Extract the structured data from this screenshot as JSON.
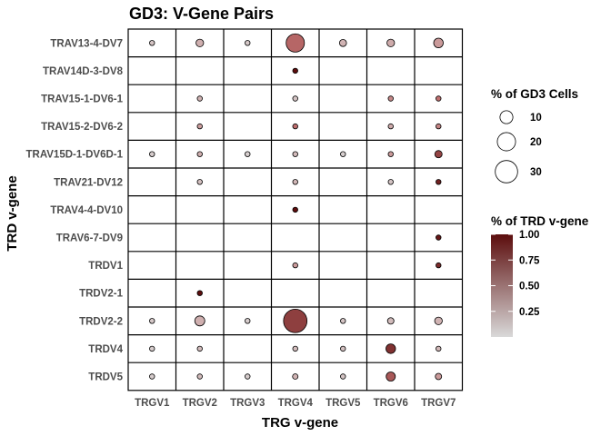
{
  "chart_data": {
    "type": "bubble-grid",
    "title": "GD3: V-Gene Pairs",
    "xlabel": "TRG v-gene",
    "ylabel": "TRD v-gene",
    "x_categories": [
      "TRGV1",
      "TRGV2",
      "TRGV3",
      "TRGV4",
      "TRGV5",
      "TRGV6",
      "TRGV7"
    ],
    "y_categories": [
      "TRAV13-4-DV7",
      "TRAV14D-3-DV8",
      "TRAV15-1-DV6-1",
      "TRAV15-2-DV6-2",
      "TRAV15D-1-DV6D-1",
      "TRAV21-DV12",
      "TRAV4-4-DV10",
      "TRAV6-7-DV9",
      "TRDV1",
      "TRDV2-1",
      "TRDV2-2",
      "TRDV4",
      "TRDV5"
    ],
    "size_legend": {
      "title": "% of GD3 Cells",
      "values": [
        10,
        20,
        30
      ],
      "labels": [
        "10",
        "20",
        "30"
      ]
    },
    "color_legend": {
      "title": "% of TRD v-gene",
      "ticks": [
        1.0,
        0.75,
        0.5,
        0.25
      ],
      "labels": [
        "1.00",
        "0.75",
        "0.50",
        "0.25"
      ],
      "low_color": "#d9d9d9",
      "high_color": "#5c0d0d"
    },
    "points": [
      {
        "x": "TRGV1",
        "y": "TRAV13-4-DV7",
        "pct_cells": 1.0,
        "frac_trd": 0.1
      },
      {
        "x": "TRGV2",
        "y": "TRAV13-4-DV7",
        "pct_cells": 3.5,
        "frac_trd": 0.2
      },
      {
        "x": "TRGV3",
        "y": "TRAV13-4-DV7",
        "pct_cells": 0.8,
        "frac_trd": 0.08
      },
      {
        "x": "TRGV4",
        "y": "TRAV13-4-DV7",
        "pct_cells": 20,
        "frac_trd": 0.55
      },
      {
        "x": "TRGV5",
        "y": "TRAV13-4-DV7",
        "pct_cells": 3.0,
        "frac_trd": 0.18
      },
      {
        "x": "TRGV6",
        "y": "TRAV13-4-DV7",
        "pct_cells": 3.5,
        "frac_trd": 0.22
      },
      {
        "x": "TRGV7",
        "y": "TRAV13-4-DV7",
        "pct_cells": 5.5,
        "frac_trd": 0.3
      },
      {
        "x": "TRGV4",
        "y": "TRAV14D-3-DV8",
        "pct_cells": 0.7,
        "frac_trd": 1.0
      },
      {
        "x": "TRGV2",
        "y": "TRAV15-1-DV6-1",
        "pct_cells": 0.9,
        "frac_trd": 0.18
      },
      {
        "x": "TRGV4",
        "y": "TRAV15-1-DV6-1",
        "pct_cells": 0.7,
        "frac_trd": 0.1
      },
      {
        "x": "TRGV6",
        "y": "TRAV15-1-DV6-1",
        "pct_cells": 1.1,
        "frac_trd": 0.38
      },
      {
        "x": "TRGV7",
        "y": "TRAV15-1-DV6-1",
        "pct_cells": 1.5,
        "frac_trd": 0.5
      },
      {
        "x": "TRGV2",
        "y": "TRAV15-2-DV6-2",
        "pct_cells": 0.9,
        "frac_trd": 0.28
      },
      {
        "x": "TRGV4",
        "y": "TRAV15-2-DV6-2",
        "pct_cells": 1.3,
        "frac_trd": 0.52
      },
      {
        "x": "TRGV6",
        "y": "TRAV15-2-DV6-2",
        "pct_cells": 0.8,
        "frac_trd": 0.22
      },
      {
        "x": "TRGV7",
        "y": "TRAV15-2-DV6-2",
        "pct_cells": 1.2,
        "frac_trd": 0.4
      },
      {
        "x": "TRGV1",
        "y": "TRAV15D-1-DV6D-1",
        "pct_cells": 0.6,
        "frac_trd": 0.06
      },
      {
        "x": "TRGV2",
        "y": "TRAV15D-1-DV6D-1",
        "pct_cells": 1.1,
        "frac_trd": 0.2
      },
      {
        "x": "TRGV3",
        "y": "TRAV15D-1-DV6D-1",
        "pct_cells": 0.6,
        "frac_trd": 0.05
      },
      {
        "x": "TRGV4",
        "y": "TRAV15D-1-DV6D-1",
        "pct_cells": 1.0,
        "frac_trd": 0.15
      },
      {
        "x": "TRGV5",
        "y": "TRAV15D-1-DV6D-1",
        "pct_cells": 0.6,
        "frac_trd": 0.05
      },
      {
        "x": "TRGV6",
        "y": "TRAV15D-1-DV6D-1",
        "pct_cells": 1.3,
        "frac_trd": 0.3
      },
      {
        "x": "TRGV7",
        "y": "TRAV15D-1-DV6D-1",
        "pct_cells": 3.2,
        "frac_trd": 0.72
      },
      {
        "x": "TRGV2",
        "y": "TRAV21-DV12",
        "pct_cells": 0.7,
        "frac_trd": 0.12
      },
      {
        "x": "TRGV4",
        "y": "TRAV21-DV12",
        "pct_cells": 0.8,
        "frac_trd": 0.16
      },
      {
        "x": "TRGV6",
        "y": "TRAV21-DV12",
        "pct_cells": 0.6,
        "frac_trd": 0.1
      },
      {
        "x": "TRGV7",
        "y": "TRAV21-DV12",
        "pct_cells": 1.2,
        "frac_trd": 0.9
      },
      {
        "x": "TRGV4",
        "y": "TRAV4-4-DV10",
        "pct_cells": 0.7,
        "frac_trd": 1.0
      },
      {
        "x": "TRGV7",
        "y": "TRAV6-7-DV9",
        "pct_cells": 0.8,
        "frac_trd": 0.95
      },
      {
        "x": "TRGV4",
        "y": "TRDV1",
        "pct_cells": 0.6,
        "frac_trd": 0.3
      },
      {
        "x": "TRGV7",
        "y": "TRDV1",
        "pct_cells": 0.9,
        "frac_trd": 0.85
      },
      {
        "x": "TRGV2",
        "y": "TRDV2-1",
        "pct_cells": 0.8,
        "frac_trd": 1.0
      },
      {
        "x": "TRGV1",
        "y": "TRDV2-2",
        "pct_cells": 1.0,
        "frac_trd": 0.08
      },
      {
        "x": "TRGV2",
        "y": "TRDV2-2",
        "pct_cells": 6.0,
        "frac_trd": 0.2
      },
      {
        "x": "TRGV3",
        "y": "TRDV2-2",
        "pct_cells": 1.0,
        "frac_trd": 0.06
      },
      {
        "x": "TRGV4",
        "y": "TRDV2-2",
        "pct_cells": 33,
        "frac_trd": 0.75
      },
      {
        "x": "TRGV5",
        "y": "TRDV2-2",
        "pct_cells": 1.5,
        "frac_trd": 0.1
      },
      {
        "x": "TRGV6",
        "y": "TRDV2-2",
        "pct_cells": 2.5,
        "frac_trd": 0.14
      },
      {
        "x": "TRGV7",
        "y": "TRDV2-2",
        "pct_cells": 3.5,
        "frac_trd": 0.18
      },
      {
        "x": "TRGV1",
        "y": "TRDV4",
        "pct_cells": 0.6,
        "frac_trd": 0.06
      },
      {
        "x": "TRGV2",
        "y": "TRDV4",
        "pct_cells": 1.3,
        "frac_trd": 0.14
      },
      {
        "x": "TRGV4",
        "y": "TRDV4",
        "pct_cells": 1.1,
        "frac_trd": 0.14
      },
      {
        "x": "TRGV5",
        "y": "TRDV4",
        "pct_cells": 1.3,
        "frac_trd": 0.12
      },
      {
        "x": "TRGV6",
        "y": "TRDV4",
        "pct_cells": 5.5,
        "frac_trd": 0.82
      },
      {
        "x": "TRGV7",
        "y": "TRDV4",
        "pct_cells": 1.4,
        "frac_trd": 0.16
      },
      {
        "x": "TRGV1",
        "y": "TRDV5",
        "pct_cells": 0.7,
        "frac_trd": 0.06
      },
      {
        "x": "TRGV2",
        "y": "TRDV5",
        "pct_cells": 1.4,
        "frac_trd": 0.14
      },
      {
        "x": "TRGV3",
        "y": "TRDV5",
        "pct_cells": 0.7,
        "frac_trd": 0.06
      },
      {
        "x": "TRGV4",
        "y": "TRDV5",
        "pct_cells": 1.8,
        "frac_trd": 0.18
      },
      {
        "x": "TRGV5",
        "y": "TRDV5",
        "pct_cells": 1.2,
        "frac_trd": 0.1
      },
      {
        "x": "TRGV6",
        "y": "TRDV5",
        "pct_cells": 5.0,
        "frac_trd": 0.62
      },
      {
        "x": "TRGV7",
        "y": "TRDV5",
        "pct_cells": 2.4,
        "frac_trd": 0.3
      }
    ]
  }
}
